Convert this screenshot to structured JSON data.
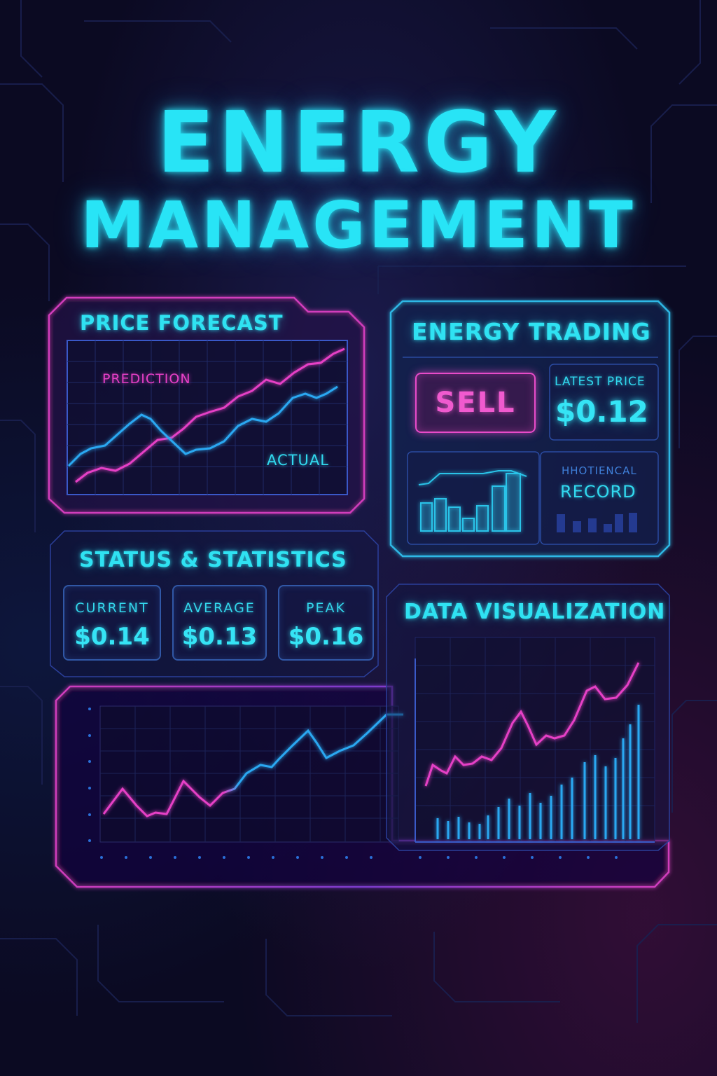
{
  "header": {
    "title_line_1": "ENERGY",
    "title_line_2": "MANAGEMENT"
  },
  "price_forecast": {
    "label": "PRICE FORECAST",
    "prediction_label": "PREDICTION",
    "actual_label": "ACTUAL"
  },
  "energy_trading": {
    "label": "ENERGY TRADING",
    "sell_label": "SELL",
    "latest_price_label": "LATEST PRICE",
    "latest_price_value": "$0.12",
    "historical_label": "HHOTIENCAL",
    "record_label": "RECORD"
  },
  "status_statistics": {
    "label": "STATUS & STATISTICS",
    "cards": [
      {
        "label": "CURRENT",
        "value": "$0.14"
      },
      {
        "label": "AVERAGE",
        "value": "$0.13"
      },
      {
        "label": "PEAK",
        "value": "$0.16"
      }
    ]
  },
  "data_visualization": {
    "label": "DATA VISUALIZATION"
  },
  "colors": {
    "cyan": "#28e4f6",
    "pink": "#e63fc6",
    "blue": "#2aa8f2",
    "background": "#0b0a22"
  }
}
